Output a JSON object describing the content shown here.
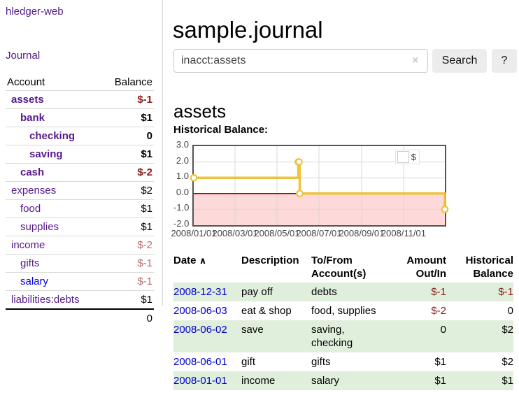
{
  "sidebar": {
    "brand": "hledger-web",
    "journal_link": "Journal",
    "account_header": "Account",
    "balance_header": "Balance",
    "accounts": [
      {
        "name": "assets",
        "indent": 0,
        "bold": true,
        "balance": "$-1",
        "balance_style": "neg-strong"
      },
      {
        "name": "bank",
        "indent": 1,
        "bold": true,
        "balance": "$1",
        "balance_style": "pos"
      },
      {
        "name": "checking",
        "indent": 2,
        "bold": true,
        "balance": "0",
        "balance_style": "pos"
      },
      {
        "name": "saving",
        "indent": 2,
        "bold": true,
        "balance": "$1",
        "balance_style": "pos"
      },
      {
        "name": "cash",
        "indent": 1,
        "bold": true,
        "balance": "$-2",
        "balance_style": "neg-strong"
      },
      {
        "name": "expenses",
        "indent": 0,
        "bold": false,
        "balance": "$2",
        "balance_style": "pos"
      },
      {
        "name": "food",
        "indent": 1,
        "bold": false,
        "balance": "$1",
        "balance_style": "pos"
      },
      {
        "name": "supplies",
        "indent": 1,
        "bold": false,
        "balance": "$1",
        "balance_style": "pos"
      },
      {
        "name": "income",
        "indent": 0,
        "bold": false,
        "balance": "$-2",
        "balance_style": "neg-soft"
      },
      {
        "name": "gifts",
        "indent": 1,
        "bold": false,
        "balance": "$-1",
        "balance_style": "neg-soft"
      },
      {
        "name": "salary",
        "indent": 1,
        "bold": false,
        "balance": "$-1",
        "balance_style": "neg-soft",
        "link_style": "bluelink"
      },
      {
        "name": "liabilities:debts",
        "indent": 0,
        "bold": false,
        "balance": "$1",
        "balance_style": "pos"
      }
    ],
    "total": "0"
  },
  "main": {
    "title": "sample.journal",
    "search": {
      "value": "inacct:assets",
      "clear_icon": "×",
      "search_button": "Search",
      "help_button": "?"
    },
    "account_heading": "assets",
    "chart_title": "Historical Balance:",
    "register": {
      "headers": {
        "date": "Date",
        "sort_arrow": "∧",
        "description": "Description",
        "account": "To/From Account(s)",
        "amount": "Amount Out/In",
        "balance": "Historical Balance"
      },
      "rows": [
        {
          "date": "2008-12-31",
          "description": "pay off",
          "accounts": "debts",
          "amount": "$-1",
          "balance": "$-1",
          "amount_neg": true,
          "balance_neg": true
        },
        {
          "date": "2008-06-03",
          "description": "eat & shop",
          "accounts": "food, supplies",
          "amount": "$-2",
          "balance": "0",
          "amount_neg": true,
          "balance_neg": false
        },
        {
          "date": "2008-06-02",
          "description": "save",
          "accounts": "saving, checking",
          "amount": "0",
          "balance": "$2",
          "amount_neg": false,
          "balance_neg": false
        },
        {
          "date": "2008-06-01",
          "description": "gift",
          "accounts": "gifts",
          "amount": "$1",
          "balance": "$2",
          "amount_neg": false,
          "balance_neg": false
        },
        {
          "date": "2008-01-01",
          "description": "income",
          "accounts": "salary",
          "amount": "$1",
          "balance": "$1",
          "amount_neg": false,
          "balance_neg": false
        }
      ]
    }
  },
  "chart_data": {
    "type": "line",
    "title": "Historical Balance:",
    "legend": "$",
    "x_range": [
      "2008-01-01",
      "2008-12-31"
    ],
    "ylim": [
      -2,
      3
    ],
    "y_ticks": [
      "3.0",
      "2.0",
      "1.0",
      "0.0",
      "-1.0",
      "-2.0"
    ],
    "x_ticks": [
      {
        "label": "2008/01/01",
        "date": "2008-01-01"
      },
      {
        "label": "2008/03/01",
        "date": "2008-03-01"
      },
      {
        "label": "2008/05/01",
        "date": "2008-05-01"
      },
      {
        "label": "2008/07/01",
        "date": "2008-07-01"
      },
      {
        "label": "2008/09/01",
        "date": "2008-09-01"
      },
      {
        "label": "2008/11/01",
        "date": "2008-11-01"
      }
    ],
    "series": [
      {
        "name": "$",
        "step": true,
        "points": [
          [
            "2008-01-01",
            1
          ],
          [
            "2008-06-01",
            2
          ],
          [
            "2008-06-02",
            2
          ],
          [
            "2008-06-03",
            0
          ],
          [
            "2008-12-31",
            -1
          ]
        ]
      }
    ],
    "colors": {
      "line": "#edc240",
      "negative_fill": "#fdd9d9",
      "zero_line": "#990000",
      "grid": "#d8d8d8",
      "border": "#545454"
    }
  }
}
